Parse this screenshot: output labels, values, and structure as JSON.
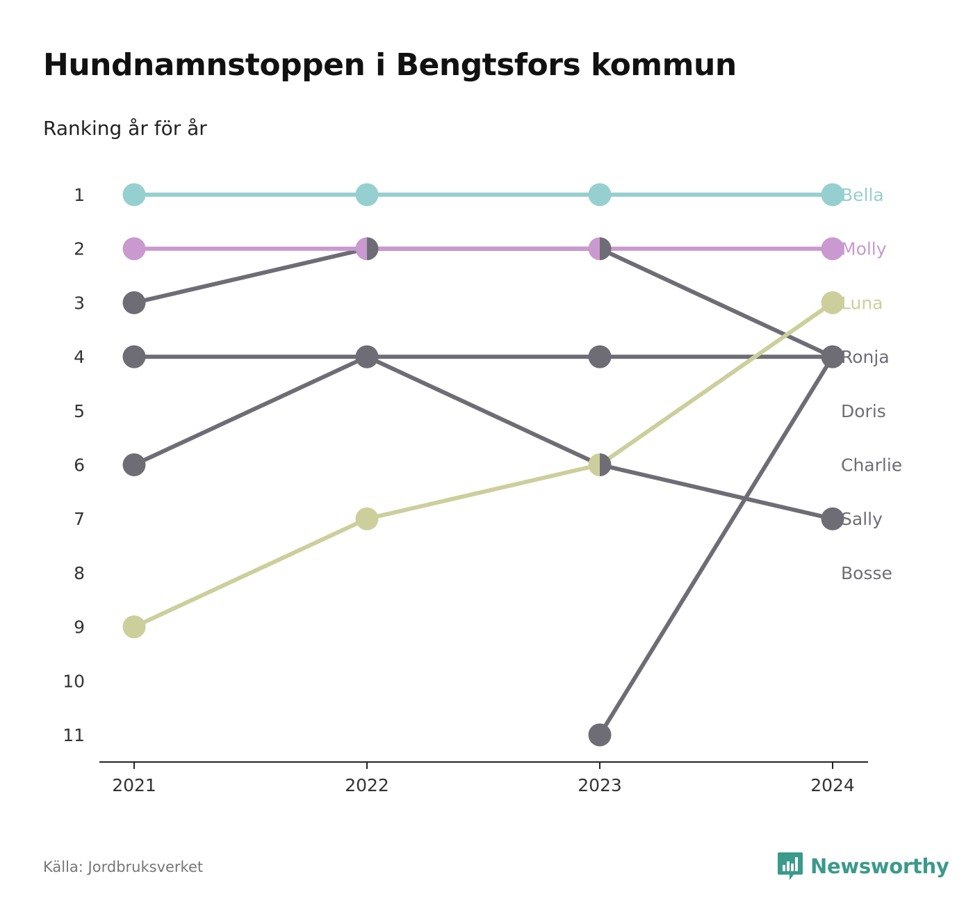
{
  "header": {
    "title": "Hundnamnstoppen i Bengtsfors kommun",
    "subtitle": "Ranking år för år"
  },
  "footer": {
    "source": "Källa: Jordbruksverket",
    "brand": "Newsworthy",
    "brand_icon": "bar-chart-speech-icon",
    "brand_color": "#3a9a8b"
  },
  "colors": {
    "gray": "#6e6d75",
    "axis": "#222222",
    "tick_text": "#333333"
  },
  "chart_data": {
    "type": "line",
    "subtype": "bump",
    "title": "Hundnamnstoppen i Bengtsfors kommun",
    "subtitle": "Ranking år för år",
    "x": [
      "2021",
      "2022",
      "2023",
      "2024"
    ],
    "y_ticks": [
      "1",
      "2",
      "3",
      "4",
      "5",
      "6",
      "7",
      "8",
      "9",
      "10",
      "11"
    ],
    "ylim": [
      1,
      11
    ],
    "y_inverted": true,
    "grid": false,
    "legend": "labels at right end of lines",
    "end_labels": [
      {
        "name": "Bella",
        "rank": 1,
        "color": "#96cfcf"
      },
      {
        "name": "Molly",
        "rank": 2,
        "color": "#c999cf"
      },
      {
        "name": "Luna",
        "rank": 3,
        "color": "#cccf9b"
      },
      {
        "name": "Ronja",
        "rank": 4,
        "color": "#6e6d75"
      },
      {
        "name": "Doris",
        "rank": 5,
        "color": "#6e6d75"
      },
      {
        "name": "Charlie",
        "rank": 6,
        "color": "#6e6d75"
      },
      {
        "name": "Sally",
        "rank": 7,
        "color": "#6e6d75"
      },
      {
        "name": "Bosse",
        "rank": 8,
        "color": "#6e6d75"
      }
    ],
    "series": [
      {
        "color": "#6e6d75",
        "values": [
          3,
          2,
          2,
          4
        ]
      },
      {
        "color": "#6e6d75",
        "values": [
          4,
          4,
          4,
          4
        ]
      },
      {
        "color": "#6e6d75",
        "values": [
          6,
          4,
          6,
          7
        ]
      },
      {
        "color": "#6e6d75",
        "values": [
          null,
          null,
          11,
          4
        ]
      },
      {
        "color": "#cccf9b",
        "values": [
          9,
          7,
          6,
          3
        ]
      },
      {
        "color": "#c999cf",
        "values": [
          2,
          2,
          2,
          2
        ]
      },
      {
        "color": "#96cfcf",
        "values": [
          1,
          1,
          1,
          1
        ]
      }
    ]
  }
}
